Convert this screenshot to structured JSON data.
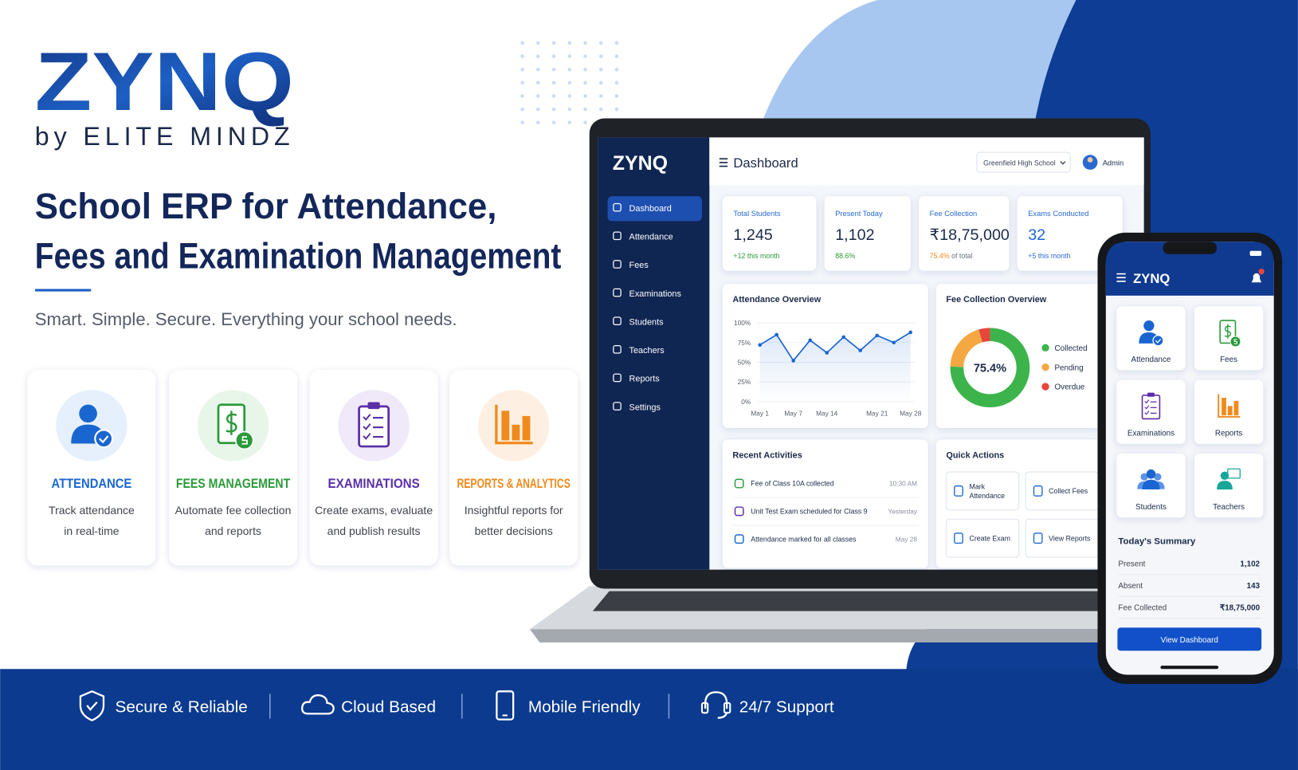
{
  "brand": {
    "logo": "ZYNQ",
    "byline": "by ELITE MINDZ"
  },
  "hero": {
    "title_lines": [
      "School ERP for Attendance,",
      "Fees and Examination Management"
    ],
    "tagline": "Smart. Simple. Secure. Everything your school needs."
  },
  "features": [
    {
      "title": "ATTENDANCE",
      "desc": [
        "Track attendance",
        "in real-time"
      ]
    },
    {
      "title": "FEES MANAGEMENT",
      "desc": [
        "Automate fee collection",
        "and reports"
      ]
    },
    {
      "title": "EXAMINATIONS",
      "desc": [
        "Create exams, evaluate",
        "and publish results"
      ]
    },
    {
      "title": "REPORTS & ANALYTICS",
      "desc": [
        "Insightful reports for",
        "better decisions"
      ]
    }
  ],
  "footer": [
    "Secure & Reliable",
    "Cloud Based",
    "Mobile Friendly",
    "24/7 Support"
  ],
  "laptop": {
    "logo": "ZYNQ",
    "menu": [
      "Dashboard",
      "Attendance",
      "Fees",
      "Examinations",
      "Students",
      "Teachers",
      "Reports",
      "Settings"
    ],
    "header": {
      "title": "Dashboard",
      "school": "Greenfield High School",
      "user": "Admin"
    },
    "stats": [
      {
        "label": "Total Students",
        "value": "1,245",
        "note": "+12 this month"
      },
      {
        "label": "Present Today",
        "value": "1,102",
        "note": "88.6%"
      },
      {
        "label": "Fee Collection",
        "value": "₹18,75,000",
        "note_highlight": "75.4%",
        "note": "of total"
      },
      {
        "label": "Exams Conducted",
        "value": "32",
        "note": "+5 this month"
      }
    ],
    "attendance_chart": {
      "type": "line",
      "title": "Attendance Overview",
      "categories": [
        "May 1",
        null,
        "May 7",
        null,
        "May 14",
        null,
        null,
        "May 21",
        null,
        "May 28"
      ],
      "values": [
        72,
        85,
        52,
        78,
        62,
        82,
        65,
        84,
        75,
        88
      ],
      "color": "#1a66d0",
      "ylim": [
        0,
        100
      ],
      "yticks": [
        {
          "value": 0,
          "label": "0%"
        },
        {
          "value": 25,
          "label": "25%"
        },
        {
          "value": 50,
          "label": "50%"
        },
        {
          "value": 75,
          "label": "75%"
        },
        {
          "value": 100,
          "label": "100%"
        }
      ],
      "grid": true
    },
    "fee_chart": {
      "type": "pie",
      "title": "Fee Collection Overview",
      "categories": [
        "Collected",
        "Pending",
        "Overdue"
      ],
      "values": [
        75.4,
        20,
        4.6
      ],
      "colors": [
        "#3cb44b",
        "#f5a742",
        "#e8453c"
      ],
      "center_label": "75.4%"
    },
    "activities": {
      "title": "Recent Activities",
      "items": [
        {
          "text": "Fee of Class 10A collected",
          "time": "10:30 AM"
        },
        {
          "text": "Unit Test Exam scheduled for Class 9",
          "time": "Yesterday"
        },
        {
          "text": "Attendance marked for all classes",
          "time": "May 28"
        }
      ]
    },
    "quick_actions": {
      "title": "Quick Actions",
      "items": [
        [
          "Mark",
          "Attendance"
        ],
        [
          "Collect Fees"
        ],
        [
          "Create Exam"
        ],
        [
          "View Reports"
        ]
      ]
    }
  },
  "phone": {
    "logo": "ZYNQ",
    "tiles": [
      "Attendance",
      "Fees",
      "Examinations",
      "Reports",
      "Students",
      "Teachers"
    ],
    "summary": {
      "title": "Today's Summary",
      "rows": [
        {
          "label": "Present",
          "value": "1,102"
        },
        {
          "label": "Absent",
          "value": "143"
        },
        {
          "label": "Fee Collected",
          "value": "₹18,75,000"
        }
      ]
    },
    "button": "View Dashboard"
  }
}
